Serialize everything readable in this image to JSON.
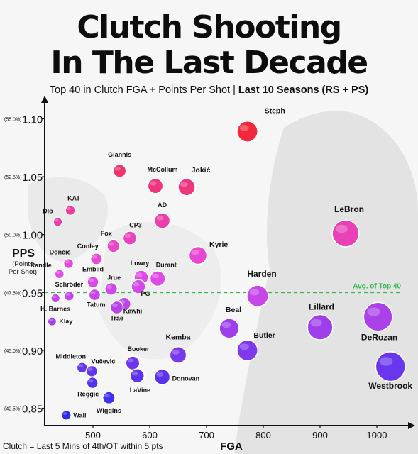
{
  "title_lines": [
    "Clutch Shooting",
    "In The Last Decade"
  ],
  "subtitle": {
    "plain": "Top 40 in Clutch FGA + Points Per Shot | ",
    "bold": "Last 10 Seasons (RS + PS)"
  },
  "footnote": "Clutch = Last 5 Mins of 4th/OT within 5 pts",
  "chart_data": {
    "type": "scatter",
    "xlabel": "FGA",
    "ylabel": "PPS",
    "ylabel_sub": [
      "(Points",
      "Per Shot)"
    ],
    "xlim": [
      415,
      1055
    ],
    "ylim": [
      0.835,
      1.115
    ],
    "x_ticks": [
      {
        "value": 500,
        "label": "500"
      },
      {
        "value": 600,
        "label": "600"
      },
      {
        "value": 700,
        "label": "700"
      },
      {
        "value": 800,
        "label": "800"
      },
      {
        "value": 900,
        "label": "900"
      },
      {
        "value": 1000,
        "label": "1000"
      }
    ],
    "y_ticks": [
      {
        "value": 0.85,
        "label": "0.85",
        "pct": "(42.5%)"
      },
      {
        "value": 0.9,
        "label": "0.90",
        "pct": "(45.0%)"
      },
      {
        "value": 0.95,
        "label": "0.95",
        "pct": "(47.5%)"
      },
      {
        "value": 1.0,
        "label": "1.00",
        "pct": "(50.0%)"
      },
      {
        "value": 1.05,
        "label": "1.05",
        "pct": "(52.5%)"
      },
      {
        "value": 1.1,
        "label": "1.10",
        "pct": "(55.0%)"
      }
    ],
    "reference_line": {
      "y": 0.95,
      "label": "Avg. of Top 40",
      "color": "#2db84d"
    },
    "color_scale": {
      "low": "#2b2bf0",
      "mid": "#e64be6",
      "high": "#f2293b"
    },
    "points": [
      {
        "name": "Steph",
        "x": 772,
        "y": 1.089
      },
      {
        "name": "Giannis",
        "x": 547,
        "y": 1.055
      },
      {
        "name": "McCollum",
        "x": 610,
        "y": 1.042
      },
      {
        "name": "Jokić",
        "x": 665,
        "y": 1.041
      },
      {
        "name": "KAT",
        "x": 460,
        "y": 1.021
      },
      {
        "name": "AD",
        "x": 622,
        "y": 1.012
      },
      {
        "name": "Dlo",
        "x": 438,
        "y": 1.011
      },
      {
        "name": "LeBron",
        "x": 945,
        "y": 1.001
      },
      {
        "name": "CP3",
        "x": 565,
        "y": 0.997
      },
      {
        "name": "Fox",
        "x": 536,
        "y": 0.99
      },
      {
        "name": "Kyrie",
        "x": 685,
        "y": 0.982
      },
      {
        "name": "Conley",
        "x": 506,
        "y": 0.979
      },
      {
        "name": "Dončić",
        "x": 457,
        "y": 0.975
      },
      {
        "name": "Randle",
        "x": 441,
        "y": 0.966
      },
      {
        "name": "Lowry",
        "x": 585,
        "y": 0.963
      },
      {
        "name": "Durant",
        "x": 614,
        "y": 0.962
      },
      {
        "name": "Embiid",
        "x": 500,
        "y": 0.959
      },
      {
        "name": "PG",
        "x": 580,
        "y": 0.955
      },
      {
        "name": "Jrue",
        "x": 532,
        "y": 0.953
      },
      {
        "name": "Harden",
        "x": 790,
        "y": 0.947
      },
      {
        "name": "Tatum",
        "x": 503,
        "y": 0.948
      },
      {
        "name": "Schröder",
        "x": 458,
        "y": 0.947
      },
      {
        "name": "H. Barnes",
        "x": 434,
        "y": 0.945
      },
      {
        "name": "Kawhi",
        "x": 555,
        "y": 0.94
      },
      {
        "name": "Trae",
        "x": 542,
        "y": 0.937
      },
      {
        "name": "Klay",
        "x": 428,
        "y": 0.925
      },
      {
        "name": "DeRozan",
        "x": 1002,
        "y": 0.929
      },
      {
        "name": "Lillard",
        "x": 900,
        "y": 0.92
      },
      {
        "name": "Beal",
        "x": 740,
        "y": 0.919
      },
      {
        "name": "Butler",
        "x": 772,
        "y": 0.9
      },
      {
        "name": "Kemba",
        "x": 650,
        "y": 0.896
      },
      {
        "name": "Westbrook",
        "x": 1024,
        "y": 0.886
      },
      {
        "name": "Booker",
        "x": 570,
        "y": 0.889
      },
      {
        "name": "Middleton",
        "x": 481,
        "y": 0.885
      },
      {
        "name": "Vučević",
        "x": 498,
        "y": 0.882
      },
      {
        "name": "LaVine",
        "x": 578,
        "y": 0.878
      },
      {
        "name": "Donovan",
        "x": 622,
        "y": 0.877
      },
      {
        "name": "Reggie",
        "x": 499,
        "y": 0.872
      },
      {
        "name": "Wiggins",
        "x": 528,
        "y": 0.859
      },
      {
        "name": "Wall",
        "x": 453,
        "y": 0.844
      }
    ]
  }
}
